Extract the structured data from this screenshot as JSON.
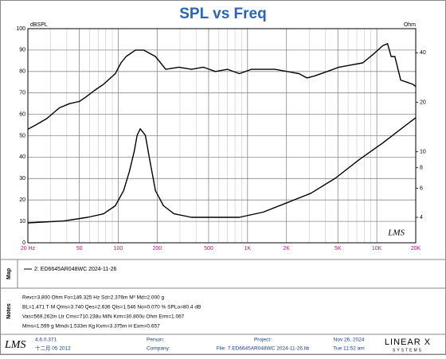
{
  "chart_data": {
    "type": "line",
    "title": "SPL vs Freq",
    "ylabel": "dBSPL",
    "y2label": "Ohm",
    "xscale": "log",
    "y2scale": "log",
    "grid": true,
    "watermark": "LMS",
    "xlim": [
      20,
      20000
    ],
    "xticks": [
      {
        "value": 20,
        "label": "20 Hz"
      },
      50,
      100,
      200,
      500,
      {
        "value": 1000,
        "label": "1K"
      },
      {
        "value": 2000,
        "label": "2K"
      },
      {
        "value": 5000,
        "label": "5K"
      },
      {
        "value": 10000,
        "label": "10K"
      },
      {
        "value": 20000,
        "label": "20K"
      }
    ],
    "xminorticks": [
      30,
      40,
      60,
      70,
      80,
      90,
      300,
      400,
      600,
      700,
      800,
      900,
      3000,
      4000,
      6000,
      7000,
      8000,
      9000
    ],
    "ylim": [
      0,
      100
    ],
    "yticks": [
      0,
      10,
      20,
      30,
      40,
      50,
      60,
      70,
      80,
      90,
      100
    ],
    "y2lim": [
      2.8,
      56
    ],
    "y2ticks": [
      4,
      6,
      8,
      10,
      20,
      40
    ],
    "series": [
      {
        "name": "SPL",
        "color": "#000000",
        "x": [
          20,
          23,
          28,
          35,
          42,
          50,
          56,
          65,
          77,
          95,
          105,
          115,
          136,
          157,
          194,
          233,
          295,
          369,
          455,
          565,
          700,
          865,
          1070,
          1320,
          1630,
          2020,
          2500,
          2880,
          3330,
          4130,
          5100,
          6300,
          7780,
          9360,
          11100,
          12100,
          12900,
          13800,
          15300,
          17100,
          19000,
          20000
        ],
        "values": [
          53,
          55,
          58,
          63,
          65,
          66,
          68,
          71,
          74,
          79,
          84,
          87,
          90,
          90,
          87,
          81,
          82,
          81,
          82,
          80,
          81,
          79,
          81,
          81,
          81,
          80,
          79,
          77,
          78,
          80,
          82,
          83,
          84,
          88,
          92,
          93,
          87,
          87,
          76,
          75,
          74,
          73
        ]
      },
      {
        "name": "Impedance",
        "color": "#000000",
        "axis": "y2",
        "x": [
          20,
          38,
          58,
          77,
          95,
          110,
          122,
          133,
          140,
          148,
          162,
          175,
          194,
          224,
          270,
          369,
          565,
          865,
          1320,
          2020,
          3090,
          4770,
          7360,
          11100,
          14700,
          20000
        ],
        "values": [
          3.7,
          3.8,
          4.0,
          4.2,
          4.7,
          5.8,
          7.6,
          10.1,
          12.6,
          13.8,
          12.6,
          9.0,
          5.8,
          4.7,
          4.2,
          4.0,
          4.0,
          4.0,
          4.3,
          4.9,
          5.6,
          6.9,
          9.0,
          11.3,
          13.4,
          16.1
        ]
      }
    ]
  },
  "map": {
    "label": "Map",
    "entry": "2: ED6645AR048WC 2024-11-26"
  },
  "notes": {
    "label": "Notes",
    "lines": [
      "Revc=3.800 Ohm  Fo=149.325 Hz  Sd=2.376m M²  Md=2.000 g",
      "BL=1.471 T·M  Qms=3.740  Qes=2.636  Qts=1.546  No=0.070 %  SPLo=80.4 dB",
      "Vas=569.262m Ltr  Cms=710.238u M/N  Krm=30.800u Ohm  Erm=1.067",
      "Mms=1.599 g  Mmd=1.533m Kg  Kxm=3.375m H  Exm=0.657"
    ]
  },
  "footer": {
    "logo": "LMS",
    "version": "4.6.0.371",
    "date": "十二月 05 2012",
    "person": "Person:",
    "company": "Company:",
    "project": "Project:",
    "file": "File: 7.ED6645AR048WC 2024-11-26.lib",
    "day": "Nov 26, 2024",
    "time": "Tue 11:52 am",
    "brand": "LINEAR X",
    "brand_sub": "SYSTEMS"
  }
}
